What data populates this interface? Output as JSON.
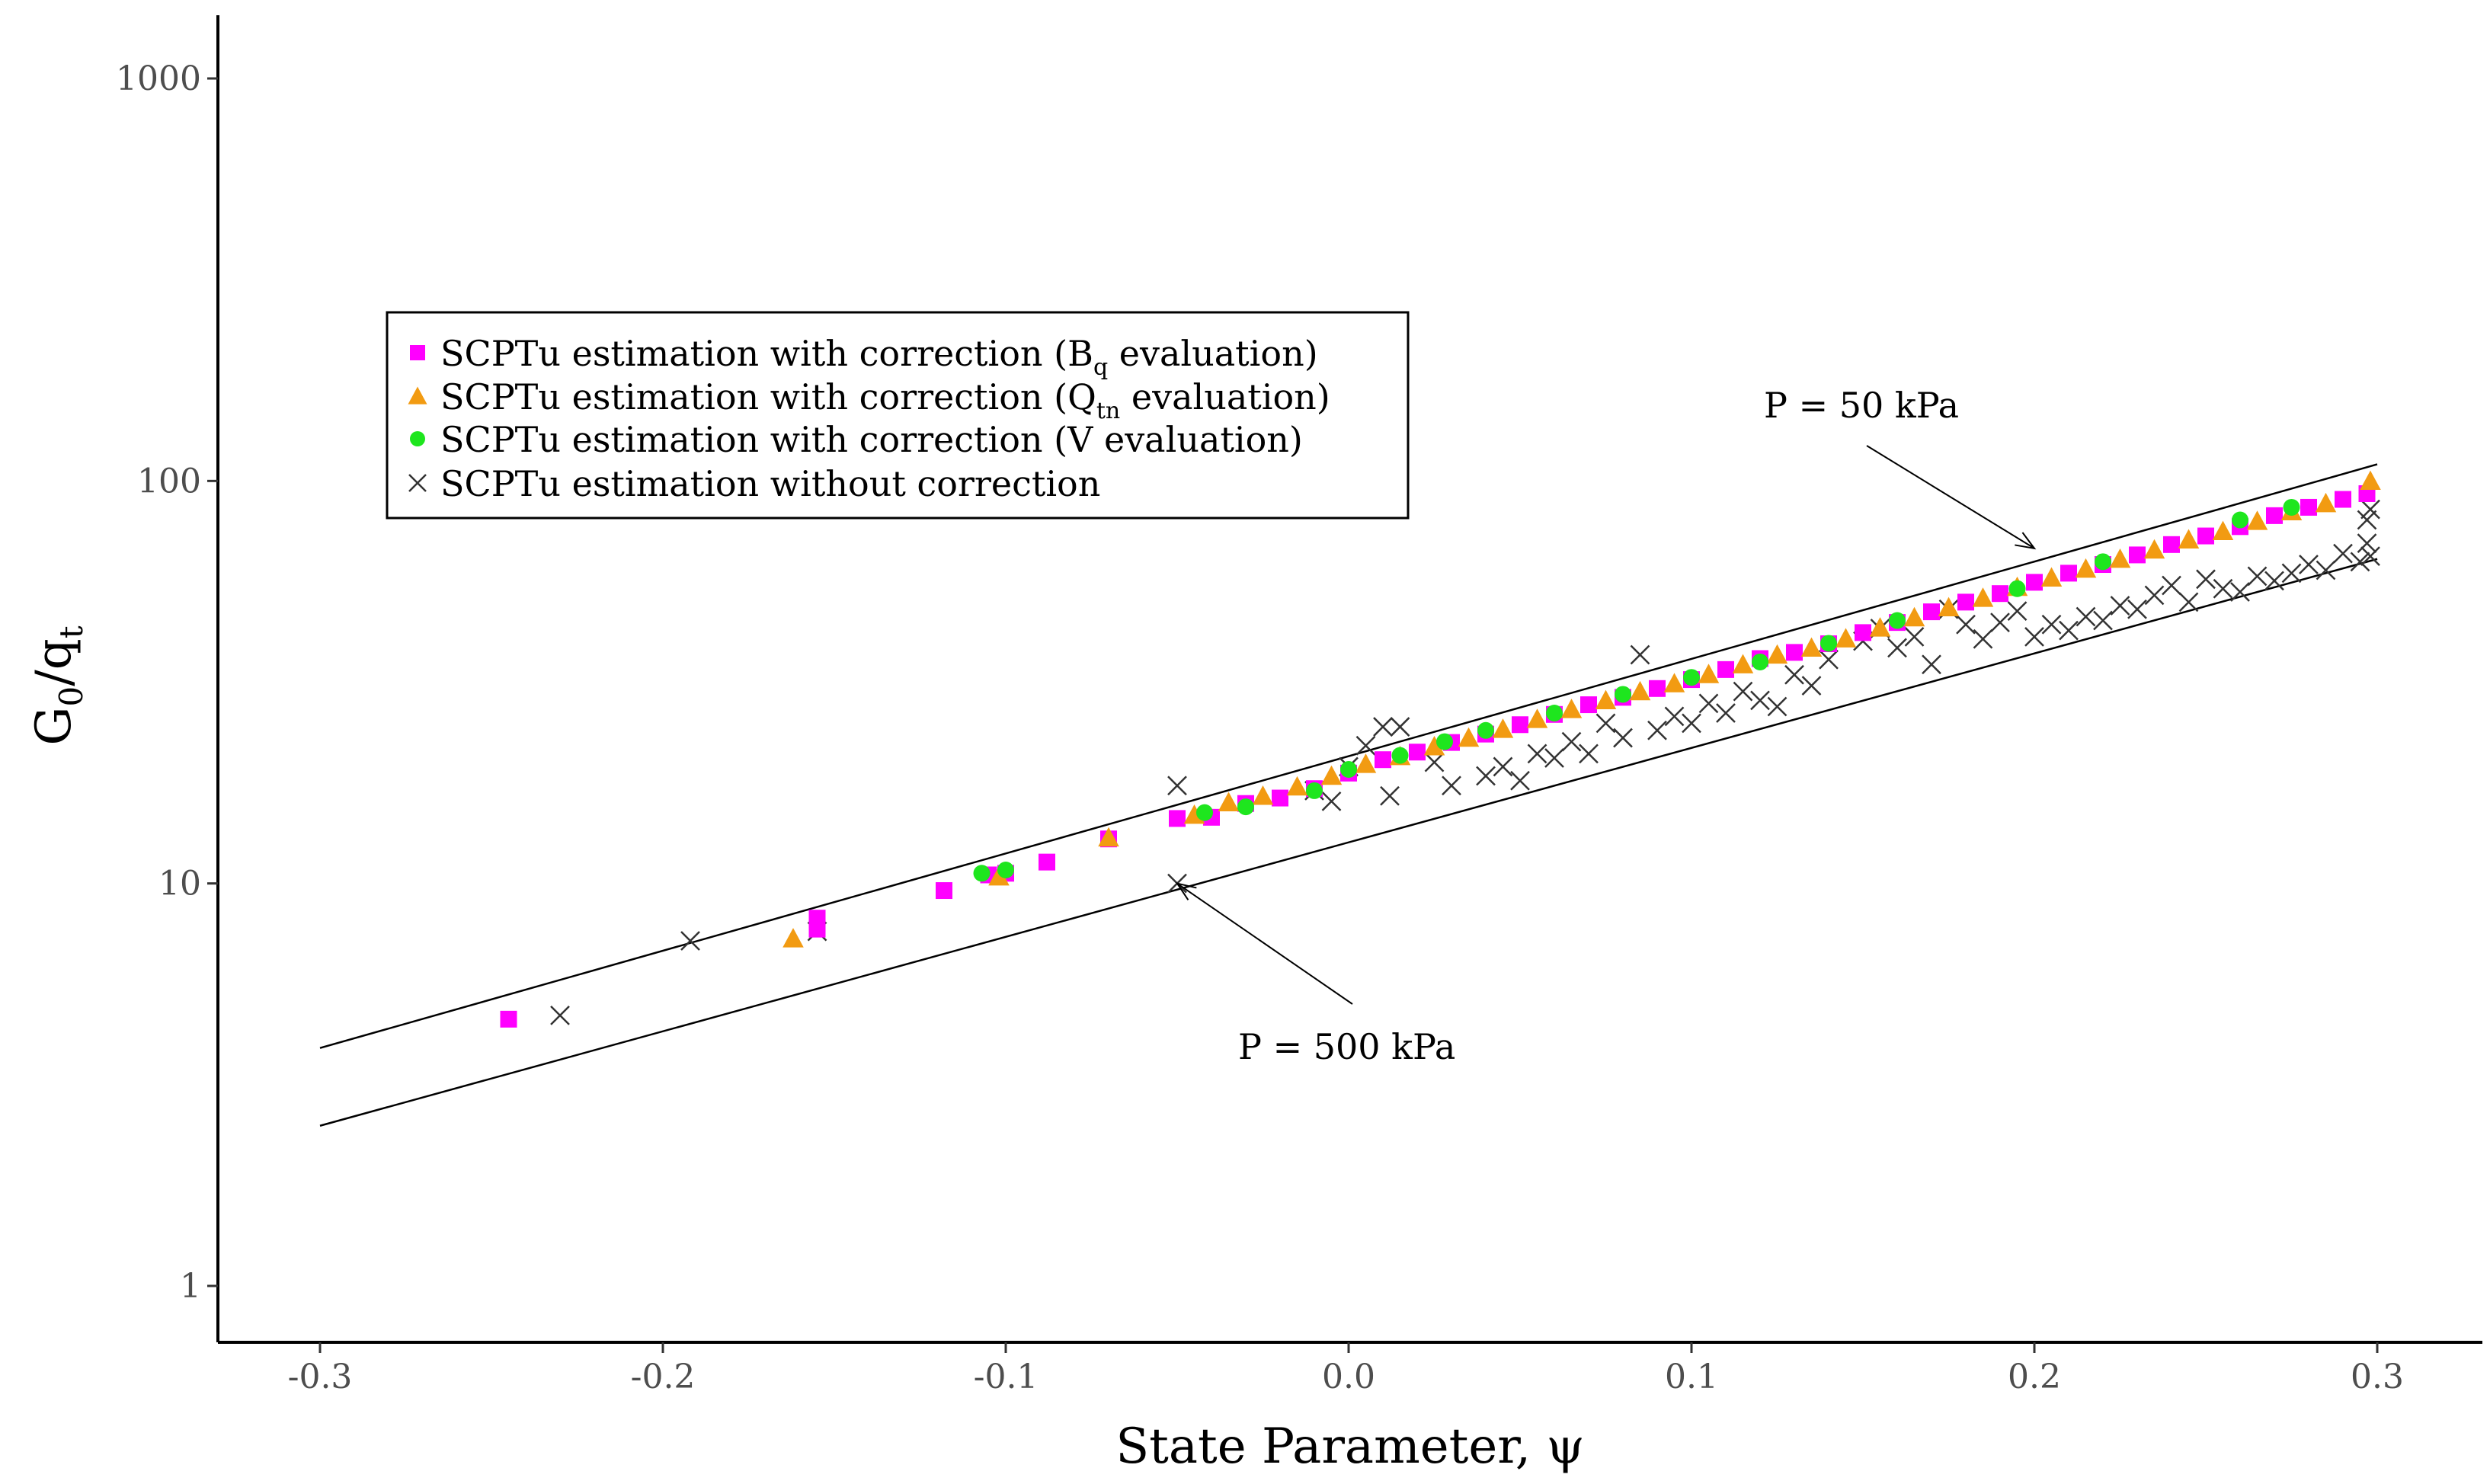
{
  "chart_data": {
    "type": "scatter",
    "title": "",
    "xlabel": "State Parameter, ψ",
    "ylabel": {
      "main": "G",
      "sub0": "0",
      "slash": "/q",
      "sub1": "t"
    },
    "xlim": [
      -0.33,
      0.33
    ],
    "ylim": [
      0.75,
      1400
    ],
    "yscale": "log",
    "grid": false,
    "legend_position": "top-left",
    "xticks": [
      -0.3,
      -0.2,
      -0.1,
      0.0,
      0.1,
      0.2,
      0.3
    ],
    "xtick_labels": [
      "-0.3",
      "-0.2",
      "-0.1",
      "0.0",
      "0.1",
      "0.2",
      "0.3"
    ],
    "yticks": [
      1,
      10,
      100,
      1000
    ],
    "ytick_labels": [
      "1",
      "10",
      "100",
      "1000"
    ],
    "lines": [
      {
        "name": "P = 50 kPa",
        "x": [
          -0.3,
          0.3
        ],
        "y": [
          3.9,
          110
        ]
      },
      {
        "name": "P = 500 kPa",
        "x": [
          -0.3,
          0.3
        ],
        "y": [
          2.5,
          64
        ]
      }
    ],
    "annotations": [
      {
        "text": "P = 50 kPa",
        "arrow_to": [
          0.2,
          68
        ]
      },
      {
        "text": "P = 500 kPa",
        "arrow_to": [
          -0.05,
          10
        ]
      }
    ],
    "series": [
      {
        "name": "SCPTu estimation with correction (B_q evaluation)",
        "legend": {
          "pre": "SCPTu estimation with correction (B",
          "sub": "q",
          "post": " evaluation)"
        },
        "marker": "square",
        "color": "#ff00ff",
        "points": [
          [
            -0.245,
            4.6
          ],
          [
            -0.155,
            7.7
          ],
          [
            -0.155,
            8.2
          ],
          [
            -0.118,
            9.6
          ],
          [
            -0.105,
            10.5
          ],
          [
            -0.1,
            10.6
          ],
          [
            -0.088,
            11.3
          ],
          [
            -0.07,
            12.9
          ],
          [
            -0.05,
            14.5
          ],
          [
            -0.04,
            14.6
          ],
          [
            -0.03,
            15.8
          ],
          [
            -0.02,
            16.3
          ],
          [
            -0.01,
            17.2
          ],
          [
            0.0,
            18.8
          ],
          [
            0.01,
            20.3
          ],
          [
            0.02,
            21.2
          ],
          [
            0.03,
            22.4
          ],
          [
            0.04,
            23.5
          ],
          [
            0.05,
            24.8
          ],
          [
            0.06,
            26.3
          ],
          [
            0.07,
            27.8
          ],
          [
            0.08,
            29.0
          ],
          [
            0.09,
            30.5
          ],
          [
            0.1,
            32.1
          ],
          [
            0.11,
            34.0
          ],
          [
            0.12,
            36.2
          ],
          [
            0.13,
            37.5
          ],
          [
            0.14,
            39.4
          ],
          [
            0.15,
            42.0
          ],
          [
            0.16,
            44.5
          ],
          [
            0.17,
            47.3
          ],
          [
            0.18,
            50.0
          ],
          [
            0.19,
            52.5
          ],
          [
            0.2,
            56.0
          ],
          [
            0.21,
            59.0
          ],
          [
            0.22,
            62.0
          ],
          [
            0.23,
            65.5
          ],
          [
            0.24,
            69.5
          ],
          [
            0.25,
            73.0
          ],
          [
            0.26,
            77.0
          ],
          [
            0.27,
            82.0
          ],
          [
            0.28,
            86.0
          ],
          [
            0.29,
            90.0
          ],
          [
            0.297,
            93.0
          ]
        ]
      },
      {
        "name": "SCPTu estimation with correction (Q_tn evaluation)",
        "legend": {
          "pre": "SCPTu estimation with correction (Q",
          "sub": "tn",
          "post": " evaluation)"
        },
        "marker": "triangle",
        "color": "#f29b12",
        "points": [
          [
            -0.162,
            7.3
          ],
          [
            -0.102,
            10.4
          ],
          [
            -0.07,
            13.0
          ],
          [
            -0.045,
            14.8
          ],
          [
            -0.035,
            15.9
          ],
          [
            -0.025,
            16.5
          ],
          [
            -0.015,
            17.4
          ],
          [
            -0.005,
            18.5
          ],
          [
            0.005,
            19.8
          ],
          [
            0.015,
            20.7
          ],
          [
            0.025,
            21.9
          ],
          [
            0.035,
            23.0
          ],
          [
            0.045,
            24.2
          ],
          [
            0.055,
            25.6
          ],
          [
            0.065,
            27.1
          ],
          [
            0.075,
            28.5
          ],
          [
            0.085,
            30.0
          ],
          [
            0.095,
            31.4
          ],
          [
            0.105,
            33.1
          ],
          [
            0.115,
            35.0
          ],
          [
            0.125,
            37.0
          ],
          [
            0.135,
            38.5
          ],
          [
            0.145,
            40.6
          ],
          [
            0.155,
            43.2
          ],
          [
            0.165,
            45.8
          ],
          [
            0.175,
            48.5
          ],
          [
            0.185,
            51.2
          ],
          [
            0.195,
            54.5
          ],
          [
            0.205,
            57.5
          ],
          [
            0.215,
            60.5
          ],
          [
            0.225,
            64.0
          ],
          [
            0.235,
            67.5
          ],
          [
            0.245,
            71.5
          ],
          [
            0.255,
            75.0
          ],
          [
            0.265,
            79.5
          ],
          [
            0.275,
            84.0
          ],
          [
            0.285,
            88.0
          ],
          [
            0.298,
            100.0
          ]
        ]
      },
      {
        "name": "SCPTu estimation with correction (V evaluation)",
        "legend": {
          "pre": "SCPTu estimation with correction (V evaluation)",
          "sub": "",
          "post": ""
        },
        "marker": "circle",
        "color": "#1ee61e",
        "points": [
          [
            -0.107,
            10.6
          ],
          [
            -0.1,
            10.8
          ],
          [
            -0.042,
            15.0
          ],
          [
            -0.03,
            15.5
          ],
          [
            -0.01,
            17.0
          ],
          [
            0.0,
            19.2
          ],
          [
            0.015,
            20.8
          ],
          [
            0.028,
            22.5
          ],
          [
            0.04,
            24.0
          ],
          [
            0.06,
            26.5
          ],
          [
            0.08,
            29.5
          ],
          [
            0.1,
            32.5
          ],
          [
            0.12,
            35.5
          ],
          [
            0.14,
            39.5
          ],
          [
            0.16,
            45.0
          ],
          [
            0.195,
            54.0
          ],
          [
            0.22,
            63.0
          ],
          [
            0.26,
            80.0
          ],
          [
            0.275,
            86.0
          ]
        ]
      },
      {
        "name": "SCPTu estimation without correction",
        "legend": {
          "pre": "SCPTu estimation without correction",
          "sub": "",
          "post": ""
        },
        "marker": "x",
        "color": "#333333",
        "points": [
          [
            -0.23,
            4.7
          ],
          [
            -0.192,
            7.2
          ],
          [
            -0.155,
            7.6
          ],
          [
            -0.05,
            17.5
          ],
          [
            -0.05,
            10.0
          ],
          [
            -0.01,
            17.0
          ],
          [
            -0.005,
            16.0
          ],
          [
            0.0,
            19.5
          ],
          [
            0.005,
            22.0
          ],
          [
            0.01,
            24.5
          ],
          [
            0.015,
            24.5
          ],
          [
            0.012,
            16.5
          ],
          [
            0.025,
            20.0
          ],
          [
            0.03,
            17.5
          ],
          [
            0.04,
            18.5
          ],
          [
            0.045,
            19.5
          ],
          [
            0.05,
            18.0
          ],
          [
            0.055,
            21.0
          ],
          [
            0.06,
            20.5
          ],
          [
            0.065,
            22.5
          ],
          [
            0.07,
            21.0
          ],
          [
            0.075,
            25.0
          ],
          [
            0.08,
            23.0
          ],
          [
            0.085,
            37.0
          ],
          [
            0.09,
            24.0
          ],
          [
            0.095,
            26.0
          ],
          [
            0.1,
            25.0
          ],
          [
            0.105,
            28.0
          ],
          [
            0.11,
            26.5
          ],
          [
            0.115,
            30.0
          ],
          [
            0.12,
            28.5
          ],
          [
            0.125,
            27.5
          ],
          [
            0.13,
            33.0
          ],
          [
            0.135,
            31.0
          ],
          [
            0.14,
            36.0
          ],
          [
            0.15,
            40.0
          ],
          [
            0.155,
            43.0
          ],
          [
            0.16,
            38.5
          ],
          [
            0.165,
            41.0
          ],
          [
            0.17,
            35.0
          ],
          [
            0.175,
            48.0
          ],
          [
            0.18,
            44.0
          ],
          [
            0.185,
            40.5
          ],
          [
            0.19,
            44.5
          ],
          [
            0.195,
            47.5
          ],
          [
            0.2,
            41.0
          ],
          [
            0.205,
            44.0
          ],
          [
            0.21,
            42.5
          ],
          [
            0.215,
            46.0
          ],
          [
            0.22,
            45.0
          ],
          [
            0.225,
            49.0
          ],
          [
            0.23,
            48.0
          ],
          [
            0.235,
            52.0
          ],
          [
            0.24,
            55.0
          ],
          [
            0.245,
            50.0
          ],
          [
            0.25,
            57.0
          ],
          [
            0.255,
            54.0
          ],
          [
            0.26,
            53.0
          ],
          [
            0.265,
            58.0
          ],
          [
            0.27,
            56.5
          ],
          [
            0.275,
            59.0
          ],
          [
            0.28,
            62.0
          ],
          [
            0.285,
            60.0
          ],
          [
            0.29,
            66.0
          ],
          [
            0.295,
            63.0
          ],
          [
            0.297,
            70.0
          ],
          [
            0.297,
            80.0
          ],
          [
            0.298,
            85.0
          ],
          [
            0.298,
            65.0
          ]
        ]
      }
    ]
  }
}
